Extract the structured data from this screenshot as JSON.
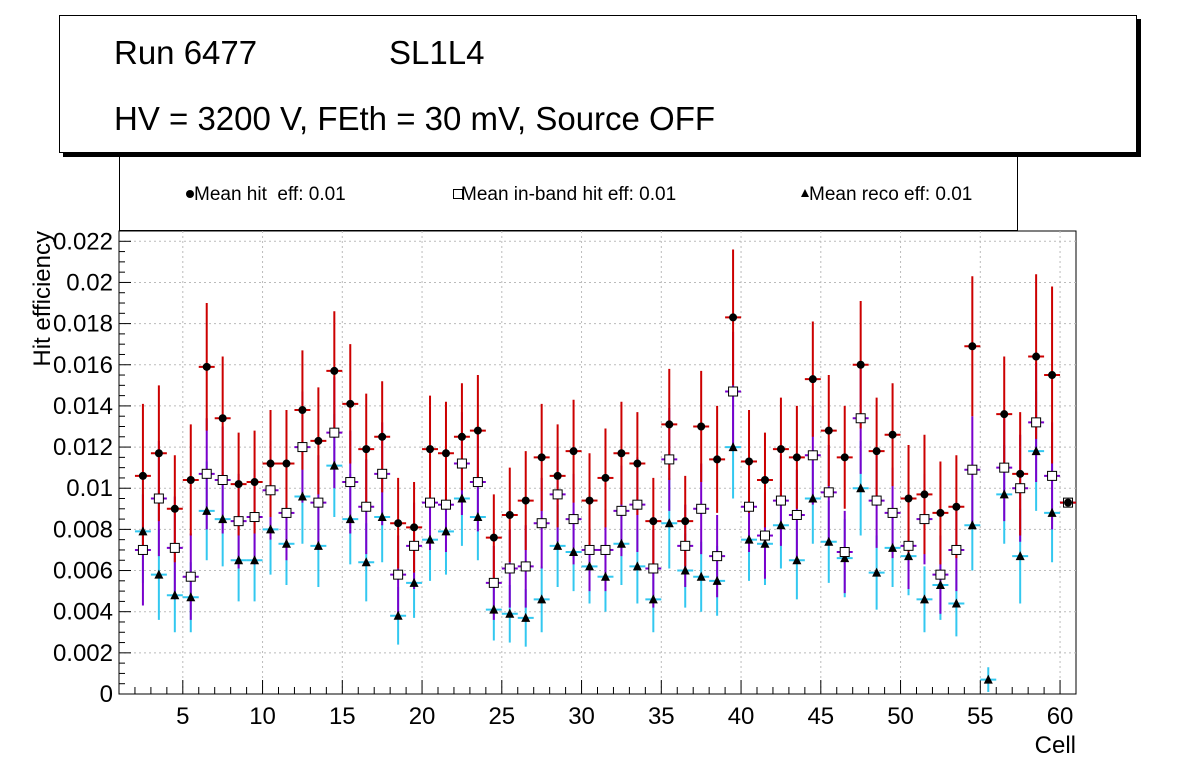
{
  "header": {
    "run_label": "Run 6477",
    "layer_label": "SL1L4",
    "conditions": "HV = 3200 V, FEth = 30 mV, Source OFF"
  },
  "legend": {
    "hit": "Mean hit  eff: 0.01",
    "inband": "Mean in-band hit eff: 0.01",
    "reco": "Mean reco eff: 0.01"
  },
  "colors": {
    "hit_marker": "#000000",
    "hit_error_bar": "#cc0000",
    "inband_marker": "#ffffff",
    "inband_error_bar": "#7a00cc",
    "reco_marker": "#000000",
    "reco_error_bar": "#33c8f0",
    "grid": "#bbbbbb"
  },
  "chart_data": {
    "type": "scatter",
    "title": "",
    "xlabel": "Cell",
    "ylabel": "Hit efficiency",
    "xlim": [
      1,
      61
    ],
    "ylim": [
      0,
      0.0225
    ],
    "grid": true,
    "xticks": [
      5,
      10,
      15,
      20,
      25,
      30,
      35,
      40,
      45,
      50,
      55,
      60
    ],
    "xtick_labels": [
      "5",
      "10",
      "15",
      "20",
      "25",
      "30",
      "35",
      "40",
      "45",
      "50",
      "55",
      "60"
    ],
    "yticks": [
      0,
      0.002,
      0.004,
      0.006,
      0.008,
      0.01,
      0.012,
      0.014,
      0.016,
      0.018,
      0.02,
      0.022
    ],
    "ytick_labels": [
      "0",
      "0.002",
      "0.004",
      "0.006",
      "0.008",
      "0.01",
      "0.012",
      "0.014",
      "0.016",
      "0.018",
      "0.02",
      "0.022"
    ],
    "series": [
      {
        "name": "Mean hit  eff: 0.01",
        "marker": "circle",
        "points": [
          {
            "x": 2.5,
            "y": 0.0106,
            "err": 0.0035
          },
          {
            "x": 3.5,
            "y": 0.0117,
            "err": 0.0033
          },
          {
            "x": 4.5,
            "y": 0.009,
            "err": 0.0026
          },
          {
            "x": 5.5,
            "y": 0.0104,
            "err": 0.0027
          },
          {
            "x": 6.5,
            "y": 0.0159,
            "err": 0.0031
          },
          {
            "x": 7.5,
            "y": 0.0134,
            "err": 0.003
          },
          {
            "x": 8.5,
            "y": 0.0102,
            "err": 0.0025
          },
          {
            "x": 9.5,
            "y": 0.0103,
            "err": 0.0025
          },
          {
            "x": 10.5,
            "y": 0.0112,
            "err": 0.0026
          },
          {
            "x": 11.5,
            "y": 0.0112,
            "err": 0.0026
          },
          {
            "x": 12.5,
            "y": 0.0138,
            "err": 0.0029
          },
          {
            "x": 13.5,
            "y": 0.0123,
            "err": 0.0026
          },
          {
            "x": 14.5,
            "y": 0.0157,
            "err": 0.0029
          },
          {
            "x": 15.5,
            "y": 0.0141,
            "err": 0.0029
          },
          {
            "x": 16.5,
            "y": 0.0119,
            "err": 0.0027
          },
          {
            "x": 17.5,
            "y": 0.0125,
            "err": 0.0027
          },
          {
            "x": 18.5,
            "y": 0.0083,
            "err": 0.0022
          },
          {
            "x": 19.5,
            "y": 0.0081,
            "err": 0.0022
          },
          {
            "x": 20.5,
            "y": 0.0119,
            "err": 0.0026
          },
          {
            "x": 21.5,
            "y": 0.0117,
            "err": 0.0025
          },
          {
            "x": 22.5,
            "y": 0.0125,
            "err": 0.0026
          },
          {
            "x": 23.5,
            "y": 0.0128,
            "err": 0.0027
          },
          {
            "x": 24.5,
            "y": 0.0076,
            "err": 0.0021
          },
          {
            "x": 25.5,
            "y": 0.0087,
            "err": 0.0023
          },
          {
            "x": 26.5,
            "y": 0.0094,
            "err": 0.0024
          },
          {
            "x": 27.5,
            "y": 0.0115,
            "err": 0.0026
          },
          {
            "x": 28.5,
            "y": 0.0106,
            "err": 0.0025
          },
          {
            "x": 29.5,
            "y": 0.0118,
            "err": 0.0025
          },
          {
            "x": 30.5,
            "y": 0.0094,
            "err": 0.0023
          },
          {
            "x": 31.5,
            "y": 0.0105,
            "err": 0.0024
          },
          {
            "x": 32.5,
            "y": 0.0117,
            "err": 0.0025
          },
          {
            "x": 33.5,
            "y": 0.0112,
            "err": 0.0025
          },
          {
            "x": 34.5,
            "y": 0.0084,
            "err": 0.0021
          },
          {
            "x": 35.5,
            "y": 0.0131,
            "err": 0.0027
          },
          {
            "x": 36.5,
            "y": 0.0084,
            "err": 0.0022
          },
          {
            "x": 37.5,
            "y": 0.013,
            "err": 0.0027
          },
          {
            "x": 38.5,
            "y": 0.0114,
            "err": 0.0026
          },
          {
            "x": 39.5,
            "y": 0.0183,
            "err": 0.0033
          },
          {
            "x": 40.5,
            "y": 0.0113,
            "err": 0.0025
          },
          {
            "x": 41.5,
            "y": 0.0104,
            "err": 0.0023
          },
          {
            "x": 42.5,
            "y": 0.0119,
            "err": 0.0025
          },
          {
            "x": 43.5,
            "y": 0.0115,
            "err": 0.0025
          },
          {
            "x": 44.5,
            "y": 0.0153,
            "err": 0.0028
          },
          {
            "x": 45.5,
            "y": 0.0128,
            "err": 0.0027
          },
          {
            "x": 46.5,
            "y": 0.0115,
            "err": 0.0025
          },
          {
            "x": 47.5,
            "y": 0.016,
            "err": 0.0031
          },
          {
            "x": 48.5,
            "y": 0.0118,
            "err": 0.0026
          },
          {
            "x": 49.5,
            "y": 0.0126,
            "err": 0.0025
          },
          {
            "x": 50.5,
            "y": 0.0095,
            "err": 0.0026
          },
          {
            "x": 51.5,
            "y": 0.0097,
            "err": 0.0029
          },
          {
            "x": 52.5,
            "y": 0.0088,
            "err": 0.0025
          },
          {
            "x": 53.5,
            "y": 0.0091,
            "err": 0.0025
          },
          {
            "x": 54.5,
            "y": 0.0169,
            "err": 0.0034
          },
          {
            "x": 56.5,
            "y": 0.0136,
            "err": 0.0028
          },
          {
            "x": 57.5,
            "y": 0.0107,
            "err": 0.003
          },
          {
            "x": 58.5,
            "y": 0.0164,
            "err": 0.004
          },
          {
            "x": 59.5,
            "y": 0.0155,
            "err": 0.0043
          },
          {
            "x": 60.5,
            "y": 0.0093,
            "err": 0.0001
          }
        ]
      },
      {
        "name": "Mean in-band hit eff: 0.01",
        "marker": "open-square",
        "points": [
          {
            "x": 2.5,
            "y": 0.007,
            "err": 0.0027
          },
          {
            "x": 3.5,
            "y": 0.0095,
            "err": 0.0028
          },
          {
            "x": 4.5,
            "y": 0.0071,
            "err": 0.0025
          },
          {
            "x": 5.5,
            "y": 0.0057,
            "err": 0.0021
          },
          {
            "x": 6.5,
            "y": 0.0107,
            "err": 0.0027
          },
          {
            "x": 7.5,
            "y": 0.0104,
            "err": 0.0026
          },
          {
            "x": 8.5,
            "y": 0.0084,
            "err": 0.0023
          },
          {
            "x": 9.5,
            "y": 0.0086,
            "err": 0.0023
          },
          {
            "x": 10.5,
            "y": 0.0099,
            "err": 0.0024
          },
          {
            "x": 11.5,
            "y": 0.0088,
            "err": 0.0023
          },
          {
            "x": 12.5,
            "y": 0.012,
            "err": 0.0027
          },
          {
            "x": 13.5,
            "y": 0.0093,
            "err": 0.0023
          },
          {
            "x": 14.5,
            "y": 0.0127,
            "err": 0.0027
          },
          {
            "x": 15.5,
            "y": 0.0103,
            "err": 0.0025
          },
          {
            "x": 16.5,
            "y": 0.0091,
            "err": 0.0023
          },
          {
            "x": 17.5,
            "y": 0.0107,
            "err": 0.0025
          },
          {
            "x": 18.5,
            "y": 0.0058,
            "err": 0.0019
          },
          {
            "x": 19.5,
            "y": 0.0072,
            "err": 0.0021
          },
          {
            "x": 20.5,
            "y": 0.0093,
            "err": 0.0023
          },
          {
            "x": 21.5,
            "y": 0.0092,
            "err": 0.0023
          },
          {
            "x": 22.5,
            "y": 0.0112,
            "err": 0.0025
          },
          {
            "x": 23.5,
            "y": 0.0103,
            "err": 0.0024
          },
          {
            "x": 24.5,
            "y": 0.0054,
            "err": 0.0018
          },
          {
            "x": 25.5,
            "y": 0.0061,
            "err": 0.0019
          },
          {
            "x": 26.5,
            "y": 0.0062,
            "err": 0.002
          },
          {
            "x": 27.5,
            "y": 0.0083,
            "err": 0.0022
          },
          {
            "x": 28.5,
            "y": 0.0097,
            "err": 0.0023
          },
          {
            "x": 29.5,
            "y": 0.0085,
            "err": 0.0022
          },
          {
            "x": 30.5,
            "y": 0.007,
            "err": 0.002
          },
          {
            "x": 31.5,
            "y": 0.007,
            "err": 0.002
          },
          {
            "x": 32.5,
            "y": 0.0089,
            "err": 0.0022
          },
          {
            "x": 33.5,
            "y": 0.0092,
            "err": 0.0023
          },
          {
            "x": 34.5,
            "y": 0.0061,
            "err": 0.0019
          },
          {
            "x": 35.5,
            "y": 0.0114,
            "err": 0.0025
          },
          {
            "x": 36.5,
            "y": 0.0072,
            "err": 0.002
          },
          {
            "x": 37.5,
            "y": 0.009,
            "err": 0.0022
          },
          {
            "x": 38.5,
            "y": 0.0067,
            "err": 0.002
          },
          {
            "x": 39.5,
            "y": 0.0147,
            "err": 0.0029
          },
          {
            "x": 40.5,
            "y": 0.0091,
            "err": 0.0022
          },
          {
            "x": 41.5,
            "y": 0.0077,
            "err": 0.0021
          },
          {
            "x": 42.5,
            "y": 0.0094,
            "err": 0.0022
          },
          {
            "x": 43.5,
            "y": 0.0087,
            "err": 0.0022
          },
          {
            "x": 44.5,
            "y": 0.0116,
            "err": 0.0024
          },
          {
            "x": 45.5,
            "y": 0.0098,
            "err": 0.0023
          },
          {
            "x": 46.5,
            "y": 0.0069,
            "err": 0.002
          },
          {
            "x": 47.5,
            "y": 0.0134,
            "err": 0.0027
          },
          {
            "x": 48.5,
            "y": 0.0094,
            "err": 0.0023
          },
          {
            "x": 49.5,
            "y": 0.0088,
            "err": 0.0022
          },
          {
            "x": 50.5,
            "y": 0.0072,
            "err": 0.0021
          },
          {
            "x": 51.5,
            "y": 0.0085,
            "err": 0.0022
          },
          {
            "x": 52.5,
            "y": 0.0058,
            "err": 0.0019
          },
          {
            "x": 53.5,
            "y": 0.007,
            "err": 0.002
          },
          {
            "x": 54.5,
            "y": 0.0109,
            "err": 0.0026
          },
          {
            "x": 56.5,
            "y": 0.011,
            "err": 0.0026
          },
          {
            "x": 57.5,
            "y": 0.01,
            "err": 0.0026
          },
          {
            "x": 58.5,
            "y": 0.0132,
            "err": 0.0029
          },
          {
            "x": 59.5,
            "y": 0.0106,
            "err": 0.0026
          },
          {
            "x": 60.5,
            "y": 0.0093,
            "err": 0.0001
          }
        ]
      },
      {
        "name": "Mean reco eff: 0.01",
        "marker": "filled-triangle",
        "points": [
          {
            "x": 2.5,
            "y": 0.0079,
            "err": 0.0025
          },
          {
            "x": 3.5,
            "y": 0.0058,
            "err": 0.0022
          },
          {
            "x": 4.5,
            "y": 0.0048,
            "err": 0.0018
          },
          {
            "x": 5.5,
            "y": 0.0047,
            "err": 0.0017
          },
          {
            "x": 6.5,
            "y": 0.0089,
            "err": 0.0024
          },
          {
            "x": 7.5,
            "y": 0.0085,
            "err": 0.0023
          },
          {
            "x": 8.5,
            "y": 0.0065,
            "err": 0.002
          },
          {
            "x": 9.5,
            "y": 0.0065,
            "err": 0.002
          },
          {
            "x": 10.5,
            "y": 0.008,
            "err": 0.0022
          },
          {
            "x": 11.5,
            "y": 0.0073,
            "err": 0.002
          },
          {
            "x": 12.5,
            "y": 0.0096,
            "err": 0.0023
          },
          {
            "x": 13.5,
            "y": 0.0072,
            "err": 0.002
          },
          {
            "x": 14.5,
            "y": 0.0111,
            "err": 0.0025
          },
          {
            "x": 15.5,
            "y": 0.0085,
            "err": 0.0022
          },
          {
            "x": 16.5,
            "y": 0.0064,
            "err": 0.0019
          },
          {
            "x": 17.5,
            "y": 0.0086,
            "err": 0.0022
          },
          {
            "x": 18.5,
            "y": 0.0038,
            "err": 0.0014
          },
          {
            "x": 19.5,
            "y": 0.0054,
            "err": 0.0017
          },
          {
            "x": 20.5,
            "y": 0.0075,
            "err": 0.002
          },
          {
            "x": 21.5,
            "y": 0.0079,
            "err": 0.0021
          },
          {
            "x": 22.5,
            "y": 0.0095,
            "err": 0.0023
          },
          {
            "x": 23.5,
            "y": 0.0086,
            "err": 0.0021
          },
          {
            "x": 24.5,
            "y": 0.0041,
            "err": 0.0015
          },
          {
            "x": 25.5,
            "y": 0.0039,
            "err": 0.0014
          },
          {
            "x": 26.5,
            "y": 0.0037,
            "err": 0.0014
          },
          {
            "x": 27.5,
            "y": 0.0046,
            "err": 0.0016
          },
          {
            "x": 28.5,
            "y": 0.0072,
            "err": 0.002
          },
          {
            "x": 29.5,
            "y": 0.0069,
            "err": 0.0019
          },
          {
            "x": 30.5,
            "y": 0.0062,
            "err": 0.0018
          },
          {
            "x": 31.5,
            "y": 0.0057,
            "err": 0.0017
          },
          {
            "x": 32.5,
            "y": 0.0073,
            "err": 0.002
          },
          {
            "x": 33.5,
            "y": 0.0062,
            "err": 0.0018
          },
          {
            "x": 34.5,
            "y": 0.0046,
            "err": 0.0016
          },
          {
            "x": 35.5,
            "y": 0.0083,
            "err": 0.0022
          },
          {
            "x": 36.5,
            "y": 0.006,
            "err": 0.0018
          },
          {
            "x": 37.5,
            "y": 0.0057,
            "err": 0.0017
          },
          {
            "x": 38.5,
            "y": 0.0055,
            "err": 0.0017
          },
          {
            "x": 39.5,
            "y": 0.012,
            "err": 0.0025
          },
          {
            "x": 40.5,
            "y": 0.0075,
            "err": 0.002
          },
          {
            "x": 41.5,
            "y": 0.0073,
            "err": 0.002
          },
          {
            "x": 42.5,
            "y": 0.0082,
            "err": 0.0021
          },
          {
            "x": 43.5,
            "y": 0.0065,
            "err": 0.0019
          },
          {
            "x": 44.5,
            "y": 0.0095,
            "err": 0.0022
          },
          {
            "x": 45.5,
            "y": 0.0074,
            "err": 0.002
          },
          {
            "x": 46.5,
            "y": 0.0066,
            "err": 0.0019
          },
          {
            "x": 47.5,
            "y": 0.01,
            "err": 0.0023
          },
          {
            "x": 48.5,
            "y": 0.0059,
            "err": 0.0018
          },
          {
            "x": 49.5,
            "y": 0.0071,
            "err": 0.0019
          },
          {
            "x": 50.5,
            "y": 0.0067,
            "err": 0.0019
          },
          {
            "x": 51.5,
            "y": 0.0046,
            "err": 0.0016
          },
          {
            "x": 52.5,
            "y": 0.0053,
            "err": 0.0017
          },
          {
            "x": 53.5,
            "y": 0.0044,
            "err": 0.0016
          },
          {
            "x": 54.5,
            "y": 0.0082,
            "err": 0.0022
          },
          {
            "x": 55.5,
            "y": 0.0007,
            "err": 0.0006
          },
          {
            "x": 56.5,
            "y": 0.0097,
            "err": 0.0024
          },
          {
            "x": 57.5,
            "y": 0.0067,
            "err": 0.0023
          },
          {
            "x": 58.5,
            "y": 0.0118,
            "err": 0.0029
          },
          {
            "x": 59.5,
            "y": 0.0088,
            "err": 0.0024
          },
          {
            "x": 60.5,
            "y": 0.0093,
            "err": 0.0001
          }
        ]
      }
    ]
  }
}
